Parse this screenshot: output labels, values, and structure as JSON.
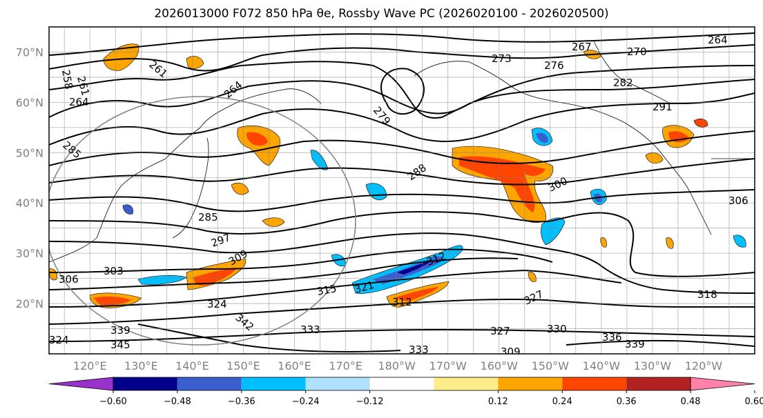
{
  "title": "2026013000 F072 850 hPa θe, Rossby Wave PC (2026020100 - 2026020500)",
  "chart_data": {
    "type": "contour-map",
    "title": "2026013000 F072 850 hPa θe, Rossby Wave PC (2026020100 - 2026020500)",
    "lat_labels": [
      "70°N",
      "60°N",
      "50°N",
      "40°N",
      "30°N",
      "20°N"
    ],
    "lat_values": [
      70,
      60,
      50,
      40,
      30,
      20
    ],
    "lon_labels": [
      "120°E",
      "130°E",
      "140°E",
      "150°E",
      "160°E",
      "170°E",
      "180°W",
      "170°W",
      "160°W",
      "150°W",
      "140°W",
      "130°W",
      "120°W"
    ],
    "lon_values": [
      120,
      130,
      140,
      150,
      160,
      170,
      180,
      190,
      200,
      210,
      220,
      230,
      240
    ],
    "lon_range": [
      112,
      250
    ],
    "lat_range": [
      10,
      75
    ],
    "grid": true,
    "colorbar": {
      "ticks": [
        "−0.60",
        "−0.48",
        "−0.36",
        "−0.24",
        "−0.12",
        "0.12",
        "0.24",
        "0.36",
        "0.48",
        "0.60"
      ],
      "levels": [
        -0.72,
        -0.6,
        -0.48,
        -0.36,
        -0.24,
        -0.12,
        0.12,
        0.24,
        0.36,
        0.48,
        0.6,
        0.72
      ],
      "colors": [
        "#9932CC",
        "#00008B",
        "#3A5FCD",
        "#00BFFF",
        "#B0E2FF",
        "#FFFFFF",
        "#FFEC8B",
        "#FFA500",
        "#FF4500",
        "#B22222",
        "#FF82AB"
      ],
      "extend": "both"
    },
    "contour_labels": [
      "264",
      "267",
      "270",
      "273",
      "276",
      "282",
      "291",
      "261",
      "258",
      "264",
      "261",
      "264",
      "279",
      "285",
      "288",
      "300",
      "306",
      "285",
      "297",
      "309",
      "303",
      "306",
      "312",
      "315",
      "321",
      "324",
      "318",
      "327",
      "330",
      "333",
      "336",
      "339",
      "342",
      "345",
      "324",
      "339",
      "333",
      "327",
      "312",
      "309"
    ]
  }
}
